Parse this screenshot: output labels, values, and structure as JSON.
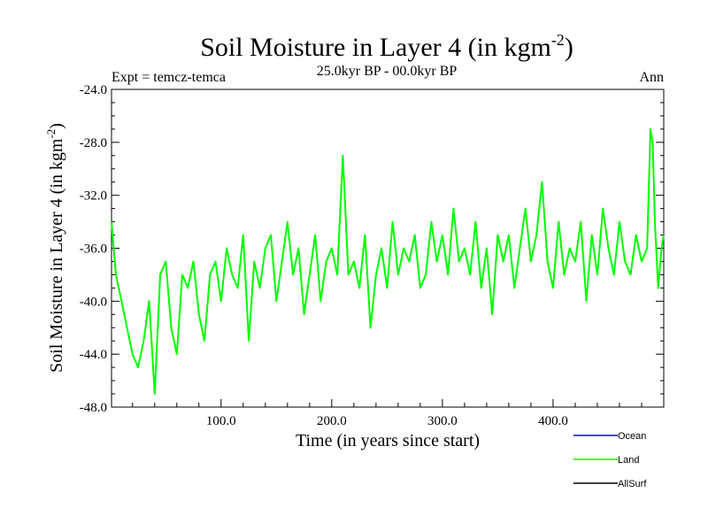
{
  "chart_data": {
    "type": "line",
    "title_main": "Soil Moisture in Layer 4 (in kgm",
    "title_sup": "-2",
    "title_close": ")",
    "subtitle": "25.0kyr BP - 00.0kyr BP",
    "left_label": "Expt = temcz-temca",
    "right_label": "Ann",
    "xlabel": "Time (in years since start)",
    "ylabel_main": "Soil Moisture in Layer 4 (in kgm",
    "ylabel_sup": "-2",
    "ylabel_close": ")",
    "xlim": [
      1,
      500
    ],
    "ylim": [
      -48,
      -24
    ],
    "xticks_major": [
      100,
      200,
      300,
      400
    ],
    "xtick_labels": [
      "100.0",
      "200.0",
      "300.0",
      "400.0"
    ],
    "yticks_major": [
      -48,
      -44,
      -40,
      -36,
      -32,
      -28,
      -24
    ],
    "ytick_labels": [
      "-48.0",
      "-44.0",
      "-40.0",
      "-36.0",
      "-32.0",
      "-28.0",
      "-24.0"
    ],
    "legend": [
      {
        "name": "Ocean",
        "color": "#0000ff"
      },
      {
        "name": "Land",
        "color": "#00ff00"
      },
      {
        "name": "AllSurf",
        "color": "#000000"
      }
    ],
    "series": [
      {
        "name": "Land",
        "color": "#00ff00",
        "x": [
          1,
          5,
          10,
          15,
          20,
          25,
          30,
          35,
          40,
          45,
          50,
          55,
          60,
          65,
          70,
          75,
          80,
          85,
          90,
          95,
          100,
          105,
          110,
          115,
          120,
          125,
          130,
          135,
          140,
          145,
          150,
          155,
          160,
          165,
          170,
          175,
          180,
          185,
          190,
          195,
          200,
          205,
          210,
          215,
          220,
          225,
          230,
          235,
          240,
          245,
          250,
          255,
          260,
          265,
          270,
          275,
          280,
          285,
          290,
          295,
          300,
          305,
          310,
          315,
          320,
          325,
          330,
          335,
          340,
          345,
          350,
          355,
          360,
          365,
          370,
          375,
          380,
          385,
          390,
          395,
          400,
          405,
          410,
          415,
          420,
          425,
          430,
          435,
          440,
          445,
          450,
          455,
          460,
          465,
          470,
          475,
          480,
          485,
          488,
          490,
          492,
          495,
          498,
          500
        ],
        "y": [
          -34,
          -38,
          -40,
          -42,
          -44,
          -45,
          -43,
          -40,
          -47,
          -38,
          -37,
          -42,
          -44,
          -38,
          -39,
          -37,
          -41,
          -43,
          -38,
          -37,
          -40,
          -36,
          -38,
          -39,
          -35,
          -43,
          -37,
          -39,
          -36,
          -35,
          -40,
          -37,
          -34,
          -38,
          -36,
          -41,
          -38,
          -35,
          -40,
          -37,
          -36,
          -38,
          -29,
          -38,
          -37,
          -39,
          -35,
          -42,
          -38,
          -36,
          -39,
          -34,
          -38,
          -36,
          -37,
          -35,
          -39,
          -38,
          -34,
          -37,
          -35,
          -38,
          -33,
          -37,
          -36,
          -38,
          -34,
          -39,
          -36,
          -41,
          -35,
          -37,
          -35,
          -39,
          -36,
          -33,
          -37,
          -35,
          -31,
          -37,
          -39,
          -34,
          -38,
          -36,
          -37,
          -34,
          -40,
          -35,
          -38,
          -33,
          -36,
          -38,
          -34,
          -37,
          -38,
          -35,
          -37,
          -36,
          -27,
          -28,
          -34,
          -39,
          -36,
          -35
        ]
      }
    ]
  }
}
